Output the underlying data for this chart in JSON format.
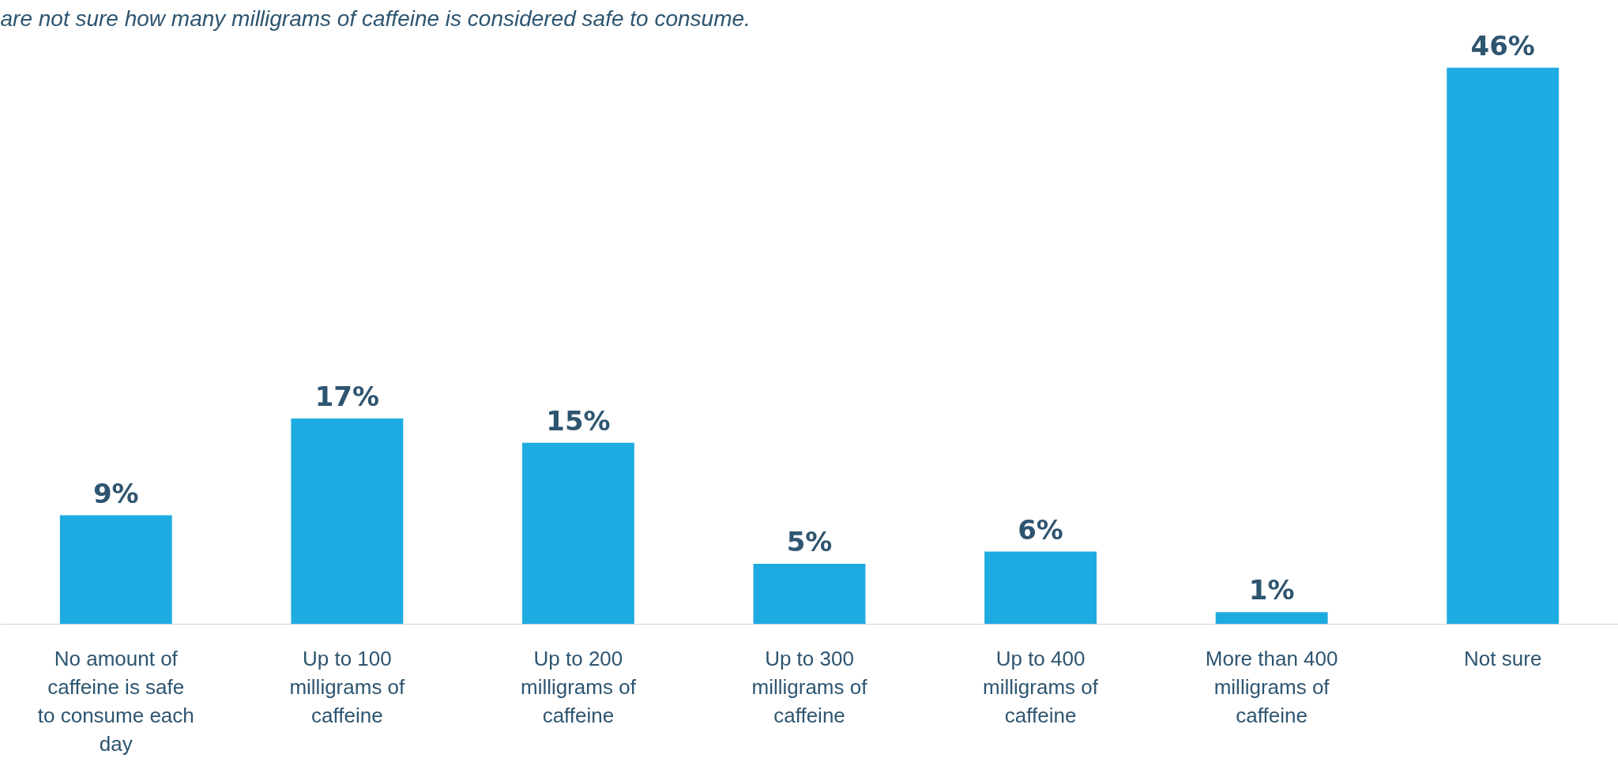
{
  "chart_data": {
    "type": "bar",
    "subtitle": "are not sure how many milligrams of caffeine is considered safe to consume.",
    "categories": [
      "No amount of caffeine is safe to consume each day",
      "Up to 100 milligrams of caffeine",
      "Up to 200 milligrams of caffeine",
      "Up to 300 milligrams of caffeine",
      "Up to 400 milligrams of caffeine",
      "More than 400 milligrams of caffeine",
      "Not sure"
    ],
    "values": [
      9,
      17,
      15,
      5,
      6,
      1,
      46
    ],
    "value_labels": [
      "9%",
      "17%",
      "15%",
      "5%",
      "6%",
      "1%",
      "46%"
    ],
    "color": "#1eabe2",
    "grid": false
  }
}
